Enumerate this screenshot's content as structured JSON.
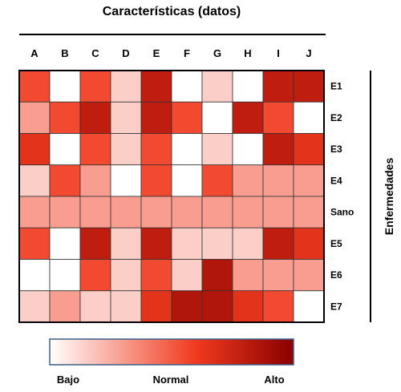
{
  "chart_data": {
    "type": "heatmap",
    "title": "Características (datos)",
    "side_label": "Enfermedades",
    "columns": [
      "A",
      "B",
      "C",
      "D",
      "E",
      "F",
      "G",
      "H",
      "I",
      "J"
    ],
    "rows": [
      "E1",
      "E2",
      "E3",
      "E4",
      "Sano",
      "E5",
      "E6",
      "E7"
    ],
    "scale": {
      "min_label": "Bajo",
      "mid_label": "Normal",
      "max_label": "Alto",
      "min": 0,
      "mid": 0.5,
      "max": 1
    },
    "colors": {
      "low": "#ffffff",
      "mid": "#f03a1e",
      "high": "#8b0000"
    },
    "values": [
      [
        0.55,
        0.0,
        0.55,
        0.15,
        0.8,
        0.0,
        0.15,
        0.0,
        0.8,
        0.8
      ],
      [
        0.3,
        0.55,
        0.8,
        0.15,
        0.8,
        0.55,
        0.0,
        0.8,
        0.55,
        0.0
      ],
      [
        0.65,
        0.0,
        0.55,
        0.15,
        0.55,
        0.0,
        0.15,
        0.0,
        0.8,
        0.65
      ],
      [
        0.15,
        0.55,
        0.3,
        0.0,
        0.55,
        0.0,
        0.55,
        0.3,
        0.3,
        0.3
      ],
      [
        0.3,
        0.3,
        0.3,
        0.3,
        0.3,
        0.3,
        0.3,
        0.3,
        0.3,
        0.3
      ],
      [
        0.55,
        0.0,
        0.8,
        0.15,
        0.8,
        0.15,
        0.15,
        0.15,
        0.8,
        0.65
      ],
      [
        0.0,
        0.0,
        0.55,
        0.15,
        0.55,
        0.15,
        0.85,
        0.3,
        0.3,
        0.3
      ],
      [
        0.15,
        0.3,
        0.15,
        0.15,
        0.65,
        0.85,
        0.85,
        0.65,
        0.55,
        0.0
      ]
    ]
  }
}
